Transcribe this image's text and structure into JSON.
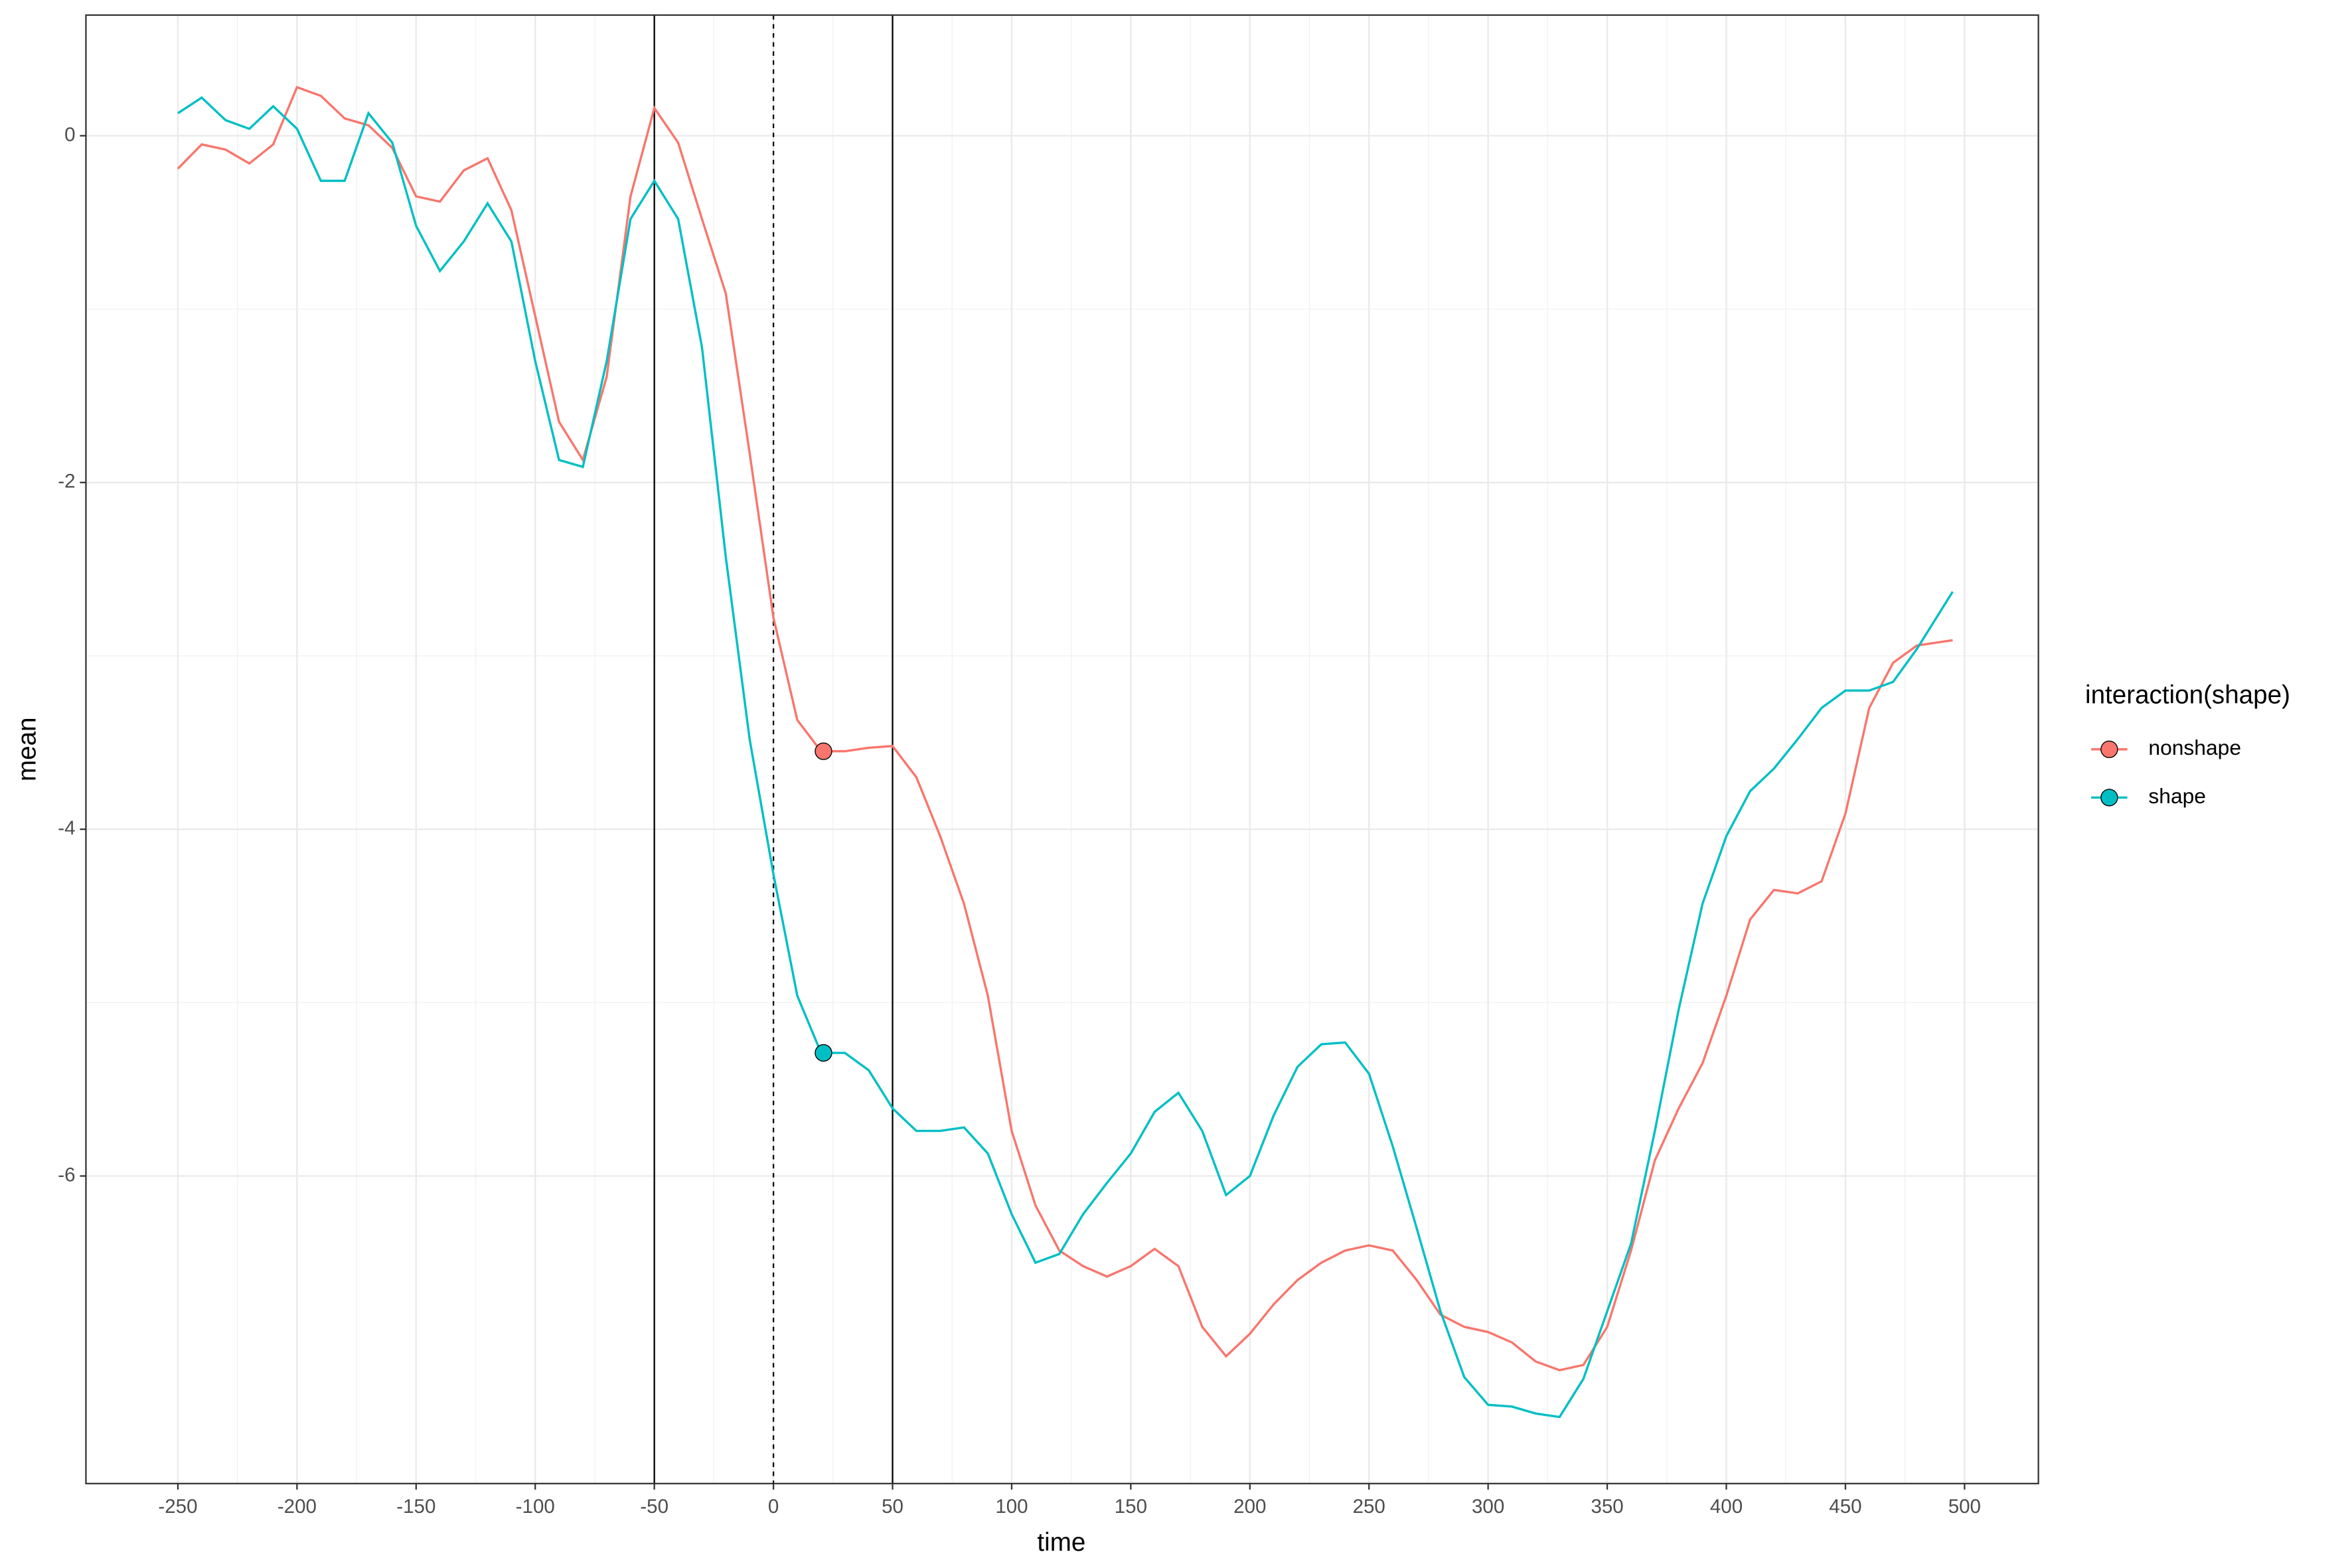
{
  "chart_data": {
    "type": "line",
    "x_label": "time",
    "y_label": "mean",
    "legend_title": "interaction(shape)",
    "xlim": [
      -288.6,
      531
    ],
    "ylim": [
      -7.774,
      0.696
    ],
    "xticks": [
      -250,
      -200,
      -150,
      -100,
      -50,
      0,
      50,
      100,
      150,
      200,
      250,
      300,
      350,
      400,
      450,
      500
    ],
    "yticks": [
      -6,
      -4,
      -2,
      0
    ],
    "grid": true,
    "legend": "right",
    "vlines": [
      {
        "x": -50,
        "style": "solid"
      },
      {
        "x": 0,
        "style": "dashed"
      },
      {
        "x": 50,
        "style": "solid"
      }
    ],
    "x": [
      -250,
      -240,
      -230,
      -220,
      -210,
      -200,
      -190,
      -180,
      -170,
      -160,
      -150,
      -140,
      -130,
      -120,
      -110,
      -100,
      -90,
      -80,
      -70,
      -60,
      -50,
      -40,
      -30,
      -20,
      -10,
      0,
      10,
      20,
      30,
      40,
      50,
      60,
      70,
      80,
      90,
      100,
      110,
      120,
      130,
      140,
      150,
      160,
      170,
      180,
      190,
      200,
      210,
      220,
      230,
      240,
      250,
      260,
      270,
      280,
      290,
      300,
      310,
      320,
      330,
      340,
      350,
      360,
      370,
      380,
      390,
      400,
      410,
      420,
      430,
      440,
      450,
      460,
      470,
      480,
      490,
      495
    ],
    "series": [
      {
        "name": "nonshape",
        "color": "#F8766D",
        "marker": {
          "x": 21,
          "y": -3.55
        },
        "values": [
          -0.19,
          -0.05,
          -0.08,
          -0.16,
          -0.05,
          0.28,
          0.23,
          0.1,
          0.06,
          -0.07,
          -0.35,
          -0.38,
          -0.2,
          -0.13,
          -0.43,
          -1.04,
          -1.65,
          -1.87,
          -1.39,
          -0.35,
          0.16,
          -0.04,
          -0.48,
          -0.91,
          -1.83,
          -2.78,
          -3.37,
          -3.55,
          -3.55,
          -3.53,
          -3.52,
          -3.7,
          -4.04,
          -4.43,
          -4.96,
          -5.74,
          -6.17,
          -6.43,
          -6.52,
          -6.58,
          -6.52,
          -6.42,
          -6.52,
          -6.87,
          -7.04,
          -6.91,
          -6.74,
          -6.6,
          -6.5,
          -6.43,
          -6.4,
          -6.43,
          -6.6,
          -6.8,
          -6.87,
          -6.9,
          -6.96,
          -7.07,
          -7.12,
          -7.09,
          -6.87,
          -6.43,
          -5.91,
          -5.61,
          -5.35,
          -4.96,
          -4.52,
          -4.35,
          -4.37,
          -4.3,
          -3.91,
          -3.3,
          -3.04,
          -2.94,
          -2.92,
          -2.91
        ]
      },
      {
        "name": "shape",
        "color": "#00BFC4",
        "marker": {
          "x": 21,
          "y": -5.29
        },
        "values": [
          0.13,
          0.22,
          0.09,
          0.04,
          0.17,
          0.04,
          -0.26,
          -0.26,
          0.13,
          -0.04,
          -0.52,
          -0.78,
          -0.61,
          -0.39,
          -0.61,
          -1.3,
          -1.87,
          -1.91,
          -1.3,
          -0.48,
          -0.26,
          -0.48,
          -1.22,
          -2.43,
          -3.48,
          -4.26,
          -4.96,
          -5.29,
          -5.29,
          -5.39,
          -5.61,
          -5.74,
          -5.74,
          -5.72,
          -5.87,
          -6.22,
          -6.5,
          -6.45,
          -6.22,
          -6.04,
          -5.87,
          -5.63,
          -5.52,
          -5.74,
          -6.11,
          -6.0,
          -5.65,
          -5.37,
          -5.24,
          -5.23,
          -5.41,
          -5.83,
          -6.3,
          -6.78,
          -7.16,
          -7.32,
          -7.33,
          -7.37,
          -7.39,
          -7.17,
          -6.78,
          -6.39,
          -5.74,
          -5.04,
          -4.43,
          -4.04,
          -3.78,
          -3.65,
          -3.48,
          -3.3,
          -3.2,
          -3.2,
          -3.15,
          -2.96,
          -2.74,
          -2.63
        ]
      }
    ]
  }
}
